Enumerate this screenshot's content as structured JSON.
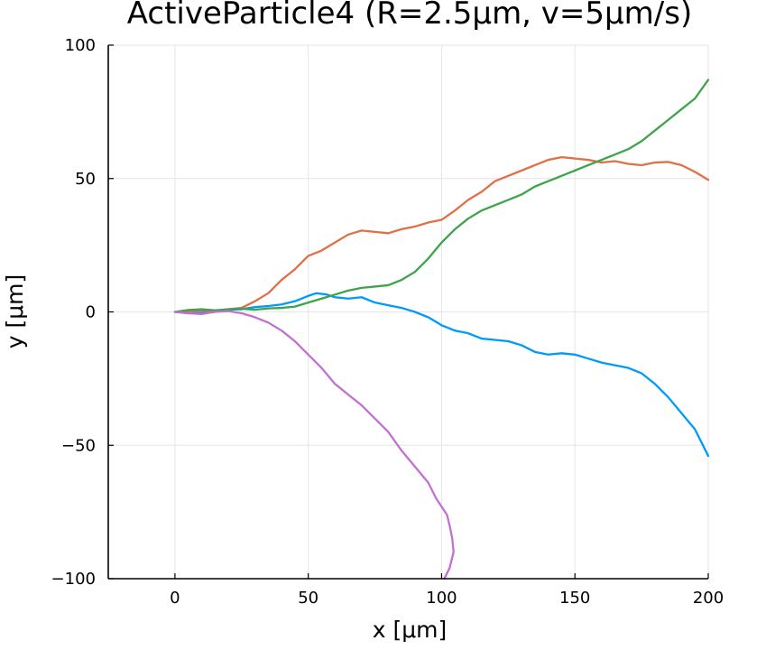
{
  "chart_data": {
    "type": "line",
    "title": "ActiveParticle4 (R=2.5μm, v=5μm/s)",
    "xlabel": "x [μm]",
    "ylabel": "y [μm]",
    "xlim": [
      -25,
      200
    ],
    "ylim": [
      -100,
      100
    ],
    "xticks": [
      0,
      50,
      100,
      150,
      200
    ],
    "yticks": [
      -100,
      -50,
      0,
      50,
      100
    ],
    "xtick_labels": [
      "0",
      "50",
      "100",
      "150",
      "200"
    ],
    "ytick_labels": [
      "−100",
      "−50",
      "0",
      "50",
      "100"
    ],
    "grid": true,
    "legend": "none",
    "series": [
      {
        "color": "#009af9",
        "points": [
          [
            0,
            0
          ],
          [
            5,
            -0.5
          ],
          [
            10,
            -0.3
          ],
          [
            15,
            0.5
          ],
          [
            20,
            0.8
          ],
          [
            25,
            1
          ],
          [
            30,
            1.8
          ],
          [
            35,
            2.2
          ],
          [
            40,
            2.8
          ],
          [
            45,
            4
          ],
          [
            50,
            6
          ],
          [
            53,
            7
          ],
          [
            57,
            6.5
          ],
          [
            60,
            5.5
          ],
          [
            65,
            5
          ],
          [
            70,
            5.5
          ],
          [
            75,
            3.5
          ],
          [
            80,
            2.5
          ],
          [
            85,
            1.5
          ],
          [
            90,
            0
          ],
          [
            95,
            -2
          ],
          [
            100,
            -5
          ],
          [
            105,
            -7
          ],
          [
            110,
            -8
          ],
          [
            115,
            -10
          ],
          [
            120,
            -10.5
          ],
          [
            125,
            -11
          ],
          [
            130,
            -12.5
          ],
          [
            135,
            -15
          ],
          [
            140,
            -16
          ],
          [
            145,
            -15.5
          ],
          [
            150,
            -16
          ],
          [
            155,
            -17.5
          ],
          [
            160,
            -19
          ],
          [
            165,
            -20
          ],
          [
            170,
            -21
          ],
          [
            175,
            -23
          ],
          [
            180,
            -27
          ],
          [
            185,
            -32
          ],
          [
            190,
            -38
          ],
          [
            195,
            -44
          ],
          [
            200,
            -54
          ]
        ]
      },
      {
        "color": "#e26f46",
        "points": [
          [
            0,
            0
          ],
          [
            5,
            0.2
          ],
          [
            10,
            0.5
          ],
          [
            15,
            0.3
          ],
          [
            20,
            1
          ],
          [
            25,
            1.5
          ],
          [
            30,
            4
          ],
          [
            35,
            7
          ],
          [
            40,
            12
          ],
          [
            45,
            16
          ],
          [
            50,
            21
          ],
          [
            55,
            23
          ],
          [
            60,
            26
          ],
          [
            65,
            29
          ],
          [
            70,
            30.5
          ],
          [
            75,
            30
          ],
          [
            80,
            29.5
          ],
          [
            85,
            31
          ],
          [
            90,
            32
          ],
          [
            95,
            33.5
          ],
          [
            100,
            34.5
          ],
          [
            105,
            38
          ],
          [
            110,
            42
          ],
          [
            115,
            45
          ],
          [
            120,
            49
          ],
          [
            125,
            51
          ],
          [
            130,
            53
          ],
          [
            135,
            55
          ],
          [
            140,
            57
          ],
          [
            145,
            58
          ],
          [
            150,
            57.5
          ],
          [
            155,
            57
          ],
          [
            160,
            56
          ],
          [
            165,
            56.5
          ],
          [
            170,
            55.5
          ],
          [
            175,
            55
          ],
          [
            180,
            56
          ],
          [
            185,
            56.2
          ],
          [
            190,
            55
          ],
          [
            195,
            52.5
          ],
          [
            200,
            49.5
          ]
        ]
      },
      {
        "color": "#3da44d",
        "points": [
          [
            0,
            0
          ],
          [
            5,
            0.7
          ],
          [
            10,
            1
          ],
          [
            15,
            0.6
          ],
          [
            20,
            1
          ],
          [
            25,
            1.2
          ],
          [
            30,
            0.8
          ],
          [
            35,
            1.3
          ],
          [
            40,
            1.5
          ],
          [
            45,
            2
          ],
          [
            50,
            3.5
          ],
          [
            55,
            5
          ],
          [
            60,
            6.5
          ],
          [
            65,
            8
          ],
          [
            70,
            9
          ],
          [
            75,
            9.5
          ],
          [
            80,
            10
          ],
          [
            85,
            12
          ],
          [
            90,
            15
          ],
          [
            95,
            20
          ],
          [
            100,
            26
          ],
          [
            105,
            31
          ],
          [
            110,
            35
          ],
          [
            115,
            38
          ],
          [
            120,
            40
          ],
          [
            125,
            42
          ],
          [
            130,
            44
          ],
          [
            135,
            47
          ],
          [
            140,
            49
          ],
          [
            145,
            51
          ],
          [
            150,
            53
          ],
          [
            155,
            55
          ],
          [
            160,
            57
          ],
          [
            165,
            59
          ],
          [
            170,
            61
          ],
          [
            175,
            64
          ],
          [
            180,
            68
          ],
          [
            185,
            72
          ],
          [
            190,
            76
          ],
          [
            195,
            80
          ],
          [
            200,
            87
          ]
        ]
      },
      {
        "color": "#c271d2",
        "points": [
          [
            0,
            0
          ],
          [
            5,
            -0.5
          ],
          [
            10,
            -0.8
          ],
          [
            15,
            0
          ],
          [
            20,
            0.3
          ],
          [
            25,
            -0.5
          ],
          [
            30,
            -2
          ],
          [
            35,
            -4
          ],
          [
            40,
            -7
          ],
          [
            45,
            -11
          ],
          [
            50,
            -16
          ],
          [
            55,
            -21
          ],
          [
            60,
            -27
          ],
          [
            65,
            -31
          ],
          [
            70,
            -35
          ],
          [
            75,
            -40
          ],
          [
            80,
            -45
          ],
          [
            85,
            -52
          ],
          [
            90,
            -58
          ],
          [
            95,
            -64
          ],
          [
            98,
            -70
          ],
          [
            100,
            -73
          ],
          [
            102,
            -76
          ],
          [
            103,
            -80
          ],
          [
            104,
            -85
          ],
          [
            104.5,
            -90
          ],
          [
            103,
            -96
          ],
          [
            101,
            -100
          ]
        ]
      }
    ]
  }
}
